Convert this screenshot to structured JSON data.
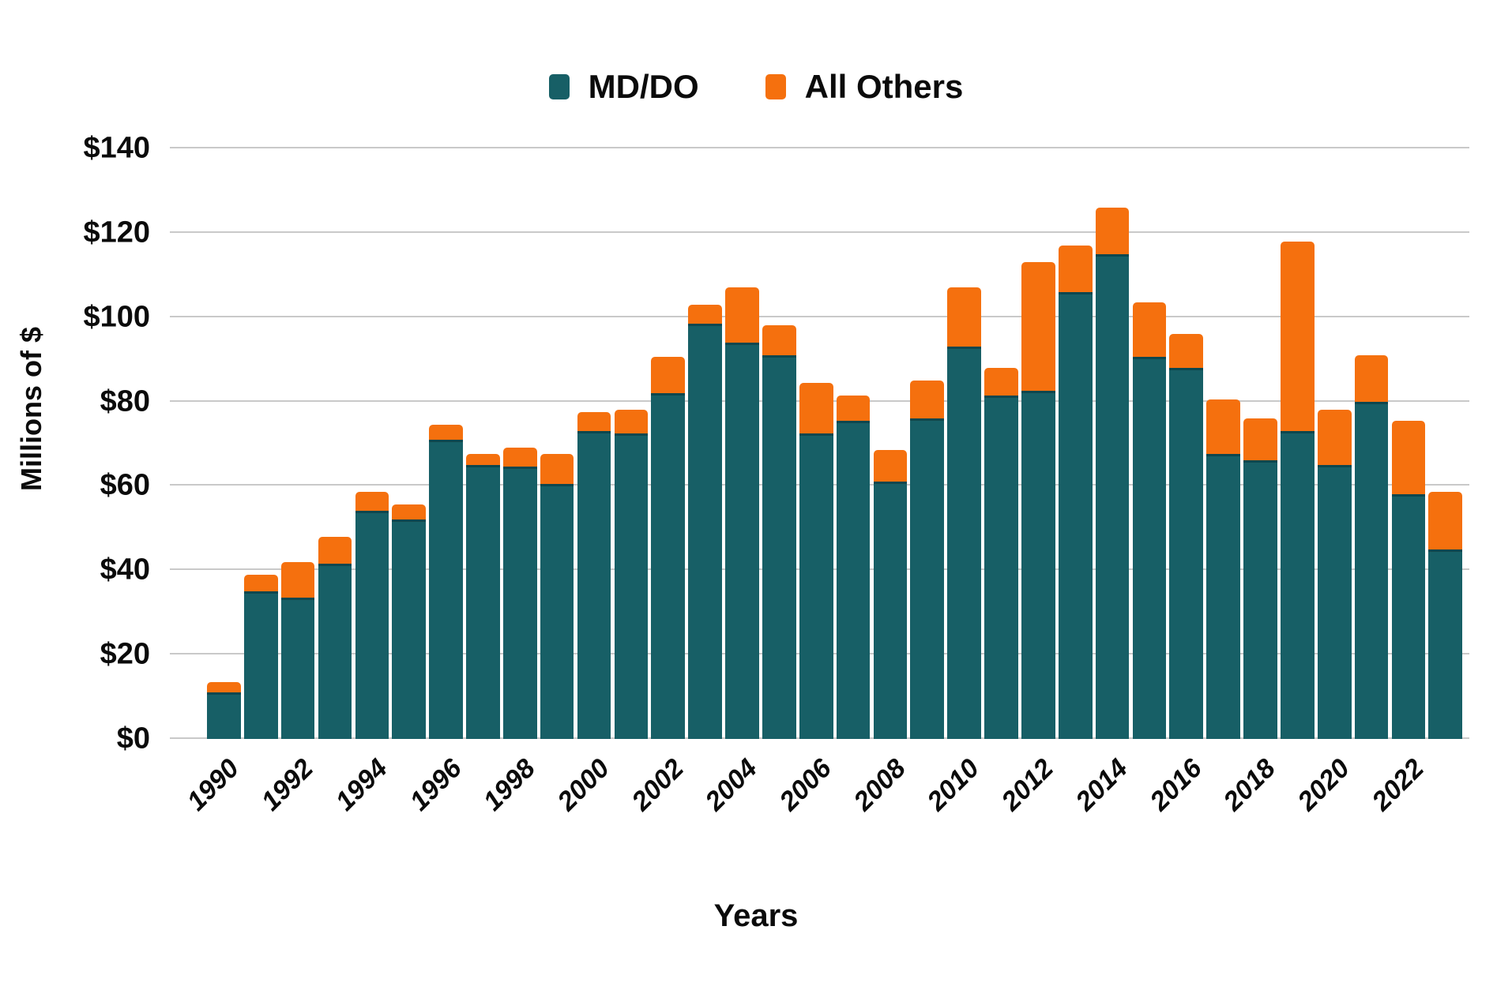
{
  "legend": {
    "items": [
      {
        "label": "MD/DO",
        "color": "#175f66"
      },
      {
        "label": "All Others",
        "color": "#f5700e"
      }
    ]
  },
  "axes": {
    "y_title": "Millions of $",
    "x_title": "Years",
    "y_tick_labels": [
      "$0",
      "$20",
      "$40",
      "$60",
      "$80",
      "$100",
      "$120",
      "$140"
    ],
    "x_tick_labels": [
      "1990",
      "1992",
      "1994",
      "1996",
      "1998",
      "2000",
      "2002",
      "2004",
      "2006",
      "2008",
      "2010",
      "2012",
      "2014",
      "2016",
      "2018",
      "2020",
      "2022"
    ]
  },
  "chart_data": {
    "type": "bar",
    "stacked": true,
    "title": "",
    "xlabel": "Years",
    "ylabel": "Millions of $",
    "ylim": [
      0,
      140
    ],
    "ytick_step": 20,
    "grid": true,
    "legend_position": "top",
    "categories": [
      1990,
      1991,
      1992,
      1993,
      1994,
      1995,
      1996,
      1997,
      1998,
      1999,
      2000,
      2001,
      2002,
      2003,
      2004,
      2005,
      2006,
      2007,
      2008,
      2009,
      2010,
      2011,
      2012,
      2013,
      2014,
      2015,
      2016,
      2017,
      2018,
      2019,
      2020,
      2021,
      2022,
      2023
    ],
    "series": [
      {
        "name": "MD/DO",
        "color": "#175f66",
        "values": [
          11,
          35,
          33.5,
          41.5,
          54,
          52,
          71,
          65,
          64.5,
          60.5,
          73,
          72.5,
          82,
          98.5,
          94,
          91,
          72.5,
          75.5,
          61,
          76,
          93,
          81.5,
          82.5,
          106,
          115,
          90.5,
          88,
          67.5,
          66,
          73,
          65,
          80,
          58,
          45
        ]
      },
      {
        "name": "All Others",
        "color": "#f5700e",
        "values": [
          2.5,
          4,
          8.5,
          6.5,
          4.5,
          3.5,
          3.5,
          2.5,
          4.5,
          7,
          4.5,
          5.5,
          8.5,
          4.5,
          13,
          7,
          12,
          6,
          7.5,
          9,
          14,
          6.5,
          30.5,
          11,
          11,
          13,
          8,
          13,
          10,
          45,
          13,
          11,
          17.5,
          13.5
        ]
      }
    ],
    "gridline_color": "#c9c9c9",
    "background_color": "#ffffff"
  }
}
